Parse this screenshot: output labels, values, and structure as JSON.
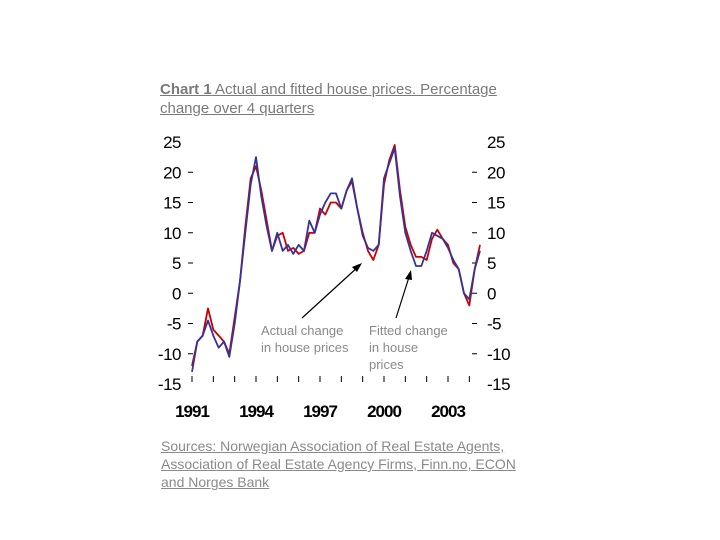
{
  "title": {
    "prefix": "Chart 1",
    "text": " Actual and fitted house prices. Percentage change over 4 quarters"
  },
  "sources": "Sources: Norwegian Association of Real Estate Agents, Association of Real Estate Agency Firms, Finn.no, ECON and Norges Bank",
  "annotations": {
    "actual": [
      "Actual change",
      "in house prices"
    ],
    "fitted": [
      "Fitted change",
      "in house",
      "prices"
    ]
  },
  "colors": {
    "actual": "#cc0000",
    "fitted": "#333399"
  },
  "chart_data": {
    "type": "line",
    "ylim": [
      -15,
      25
    ],
    "xlim": [
      1991,
      2004.5
    ],
    "yticks": [
      25,
      20,
      15,
      10,
      5,
      0,
      -5,
      -10,
      -15
    ],
    "xticks": [
      1991,
      1994,
      1997,
      2000,
      2003
    ],
    "series": [
      {
        "key": "actual",
        "x": [
          1991.0,
          1991.25,
          1991.5,
          1991.75,
          1992.0,
          1992.25,
          1992.5,
          1992.75,
          1993.0,
          1993.25,
          1993.5,
          1993.75,
          1994.0,
          1994.25,
          1994.5,
          1994.75,
          1995.0,
          1995.25,
          1995.5,
          1995.75,
          1996.0,
          1996.25,
          1996.5,
          1996.75,
          1997.0,
          1997.25,
          1997.5,
          1997.75,
          1998.0,
          1998.25,
          1998.5,
          1998.75,
          1999.0,
          1999.25,
          1999.5,
          1999.75,
          2000.0,
          2000.25,
          2000.5,
          2000.75,
          2001.0,
          2001.25,
          2001.5,
          2001.75,
          2002.0,
          2002.25,
          2002.5,
          2002.75,
          2003.0,
          2003.25,
          2003.5,
          2003.75,
          2004.0,
          2004.25,
          2004.5
        ],
        "values": [
          -12,
          -8,
          -7,
          -2.5,
          -6,
          -7,
          -8,
          -10,
          -4,
          2,
          11,
          19,
          21,
          17,
          12,
          7,
          9.5,
          10,
          7,
          7.5,
          6.5,
          7,
          10,
          10,
          14,
          13,
          15,
          15,
          14,
          17,
          18.5,
          14,
          10,
          7,
          5.5,
          8,
          18,
          22,
          24.5,
          17,
          11,
          8,
          6,
          6,
          5.5,
          9,
          10.5,
          9,
          8,
          5,
          4,
          0,
          -2,
          4,
          8
        ]
      },
      {
        "key": "fitted",
        "x": [
          1991.0,
          1991.25,
          1991.5,
          1991.75,
          1992.0,
          1992.25,
          1992.5,
          1992.75,
          1993.0,
          1993.25,
          1993.5,
          1993.75,
          1994.0,
          1994.25,
          1994.5,
          1994.75,
          1995.0,
          1995.25,
          1995.5,
          1995.75,
          1996.0,
          1996.25,
          1996.5,
          1996.75,
          1997.0,
          1997.25,
          1997.5,
          1997.75,
          1998.0,
          1998.25,
          1998.5,
          1998.75,
          1999.0,
          1999.25,
          1999.5,
          1999.75,
          2000.0,
          2000.25,
          2000.5,
          2000.75,
          2001.0,
          2001.25,
          2001.5,
          2001.75,
          2002.0,
          2002.25,
          2002.5,
          2002.75,
          2003.0,
          2003.25,
          2003.5,
          2003.75,
          2004.0,
          2004.25,
          2004.5
        ],
        "values": [
          -13,
          -8,
          -7,
          -4.5,
          -7,
          -9,
          -8,
          -10.5,
          -5,
          2,
          10,
          18,
          22.5,
          16,
          11,
          7,
          10,
          7,
          8,
          6.5,
          8,
          7,
          12,
          10,
          13,
          15,
          16.5,
          16.5,
          14,
          17,
          19,
          14,
          9.5,
          7.5,
          7,
          8,
          19,
          21.5,
          24,
          16,
          10,
          7,
          4.5,
          4.5,
          7,
          10,
          9.5,
          9,
          7.5,
          5.5,
          4,
          0,
          -1,
          4,
          7
        ]
      }
    ]
  }
}
